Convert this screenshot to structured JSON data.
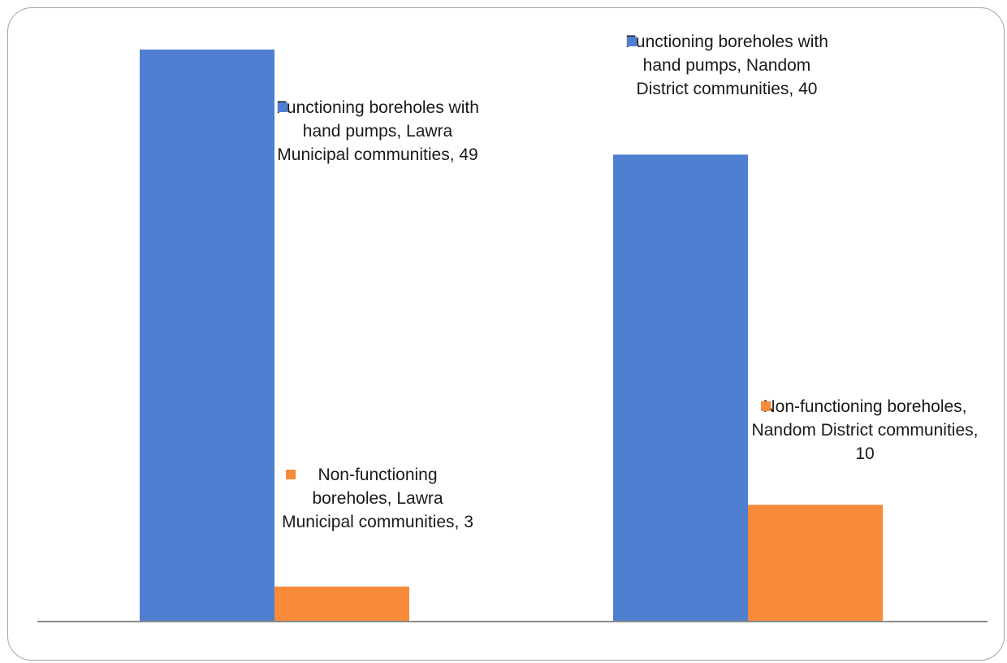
{
  "chart_data": {
    "type": "bar",
    "categories": [
      "Lawra Municipal communities",
      "Nandom District communities"
    ],
    "series": [
      {
        "name": "Functioning boreholes with hand pumps",
        "values": [
          49,
          40
        ],
        "color": "#4f7fd1",
        "labels": [
          "Functioning boreholes with hand pumps, Lawra Municipal communities, 49",
          "Functioning boreholes with hand pumps, Nandom District communities, 40"
        ]
      },
      {
        "name": "Non-functioning boreholes",
        "values": [
          3,
          10
        ],
        "color": "#f78b3a",
        "labels": [
          "Non-functioning boreholes, Lawra Municipal communities, 3",
          "Non-functioning boreholes, Nandom District communities, 10"
        ]
      }
    ],
    "title": "",
    "xlabel": "",
    "ylabel": "",
    "ylim": [
      0,
      49
    ],
    "grid": false,
    "legend": "none",
    "axis_color": "#8c8c8c"
  }
}
